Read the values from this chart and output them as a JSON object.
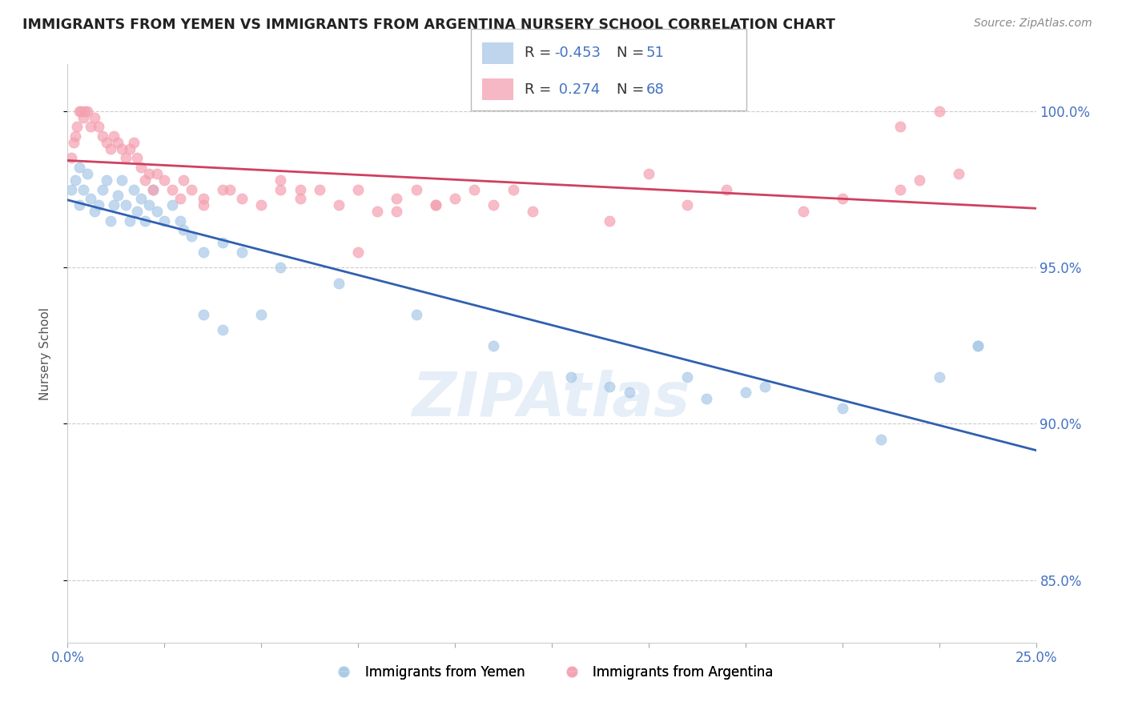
{
  "title": "IMMIGRANTS FROM YEMEN VS IMMIGRANTS FROM ARGENTINA NURSERY SCHOOL CORRELATION CHART",
  "source": "Source: ZipAtlas.com",
  "ylabel": "Nursery School",
  "yticks": [
    85.0,
    90.0,
    95.0,
    100.0
  ],
  "ytick_labels": [
    "85.0%",
    "90.0%",
    "95.0%",
    "100.0%"
  ],
  "xlim": [
    0.0,
    25.0
  ],
  "ylim": [
    83.0,
    101.5
  ],
  "legend_R_yemen": "-0.453",
  "legend_N_yemen": "51",
  "legend_R_argentina": "0.274",
  "legend_N_argentina": "68",
  "color_yemen": "#a8c8e8",
  "color_argentina": "#f4a0b0",
  "line_color_yemen": "#3060b0",
  "line_color_argentina": "#d04060",
  "watermark": "ZIPAtlas",
  "yemen_x": [
    0.1,
    0.2,
    0.3,
    0.3,
    0.4,
    0.5,
    0.6,
    0.7,
    0.8,
    0.9,
    1.0,
    1.1,
    1.2,
    1.3,
    1.4,
    1.5,
    1.6,
    1.7,
    1.8,
    1.9,
    2.0,
    2.1,
    2.2,
    2.3,
    2.5,
    2.7,
    2.9,
    3.0,
    3.2,
    3.5,
    4.0,
    4.5,
    5.5,
    7.0,
    9.0,
    11.0,
    13.0,
    14.0,
    14.5,
    16.0,
    16.5,
    17.5,
    18.0,
    20.0,
    21.0,
    22.5,
    23.5,
    23.5,
    3.5,
    4.0,
    5.0
  ],
  "yemen_y": [
    97.5,
    97.8,
    98.2,
    97.0,
    97.5,
    98.0,
    97.2,
    96.8,
    97.0,
    97.5,
    97.8,
    96.5,
    97.0,
    97.3,
    97.8,
    97.0,
    96.5,
    97.5,
    96.8,
    97.2,
    96.5,
    97.0,
    97.5,
    96.8,
    96.5,
    97.0,
    96.5,
    96.2,
    96.0,
    95.5,
    95.8,
    95.5,
    95.0,
    94.5,
    93.5,
    92.5,
    91.5,
    91.2,
    91.0,
    91.5,
    90.8,
    91.0,
    91.2,
    90.5,
    89.5,
    91.5,
    92.5,
    92.5,
    93.5,
    93.0,
    93.5
  ],
  "argentina_x": [
    0.1,
    0.15,
    0.2,
    0.25,
    0.3,
    0.35,
    0.4,
    0.45,
    0.5,
    0.6,
    0.7,
    0.8,
    0.9,
    1.0,
    1.1,
    1.2,
    1.3,
    1.4,
    1.5,
    1.6,
    1.7,
    1.8,
    1.9,
    2.0,
    2.1,
    2.2,
    2.3,
    2.5,
    2.7,
    2.9,
    3.2,
    3.5,
    4.0,
    4.5,
    5.0,
    5.5,
    6.0,
    6.5,
    7.0,
    7.5,
    8.0,
    8.5,
    9.0,
    9.5,
    10.0,
    10.5,
    11.0,
    12.0,
    14.0,
    16.0,
    17.0,
    19.0,
    20.0,
    21.5,
    22.0,
    23.0,
    3.0,
    3.5,
    4.2,
    5.5,
    6.0,
    7.5,
    8.5,
    9.5,
    11.5,
    15.0,
    21.5,
    22.5
  ],
  "argentina_y": [
    98.5,
    99.0,
    99.2,
    99.5,
    100.0,
    100.0,
    99.8,
    100.0,
    100.0,
    99.5,
    99.8,
    99.5,
    99.2,
    99.0,
    98.8,
    99.2,
    99.0,
    98.8,
    98.5,
    98.8,
    99.0,
    98.5,
    98.2,
    97.8,
    98.0,
    97.5,
    98.0,
    97.8,
    97.5,
    97.2,
    97.5,
    97.0,
    97.5,
    97.2,
    97.0,
    97.5,
    97.2,
    97.5,
    97.0,
    97.5,
    96.8,
    97.2,
    97.5,
    97.0,
    97.2,
    97.5,
    97.0,
    96.8,
    96.5,
    97.0,
    97.5,
    96.8,
    97.2,
    97.5,
    97.8,
    98.0,
    97.8,
    97.2,
    97.5,
    97.8,
    97.5,
    95.5,
    96.8,
    97.0,
    97.5,
    98.0,
    99.5,
    100.0
  ]
}
